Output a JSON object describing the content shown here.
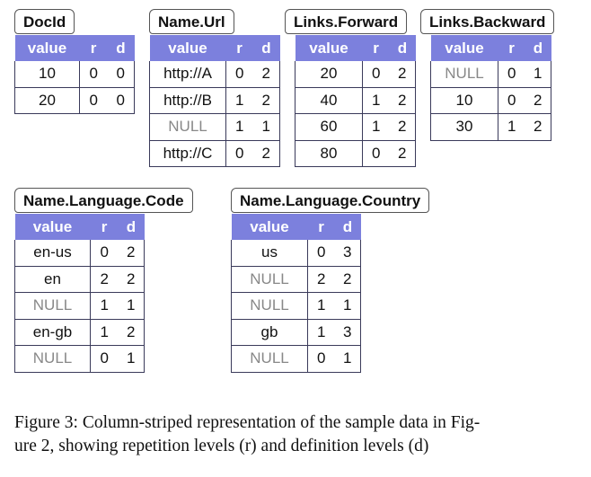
{
  "header_color": "#7c80dd",
  "columns": [
    {
      "title": "DocId",
      "headers": [
        "value",
        "r",
        "d"
      ],
      "rows": [
        [
          "10",
          "0",
          "0"
        ],
        [
          "20",
          "0",
          "0"
        ]
      ]
    },
    {
      "title": "Name.Url",
      "headers": [
        "value",
        "r",
        "d"
      ],
      "rows": [
        [
          "http://A",
          "0",
          "2"
        ],
        [
          "http://B",
          "1",
          "2"
        ],
        [
          "NULL",
          "1",
          "1"
        ],
        [
          "http://C",
          "0",
          "2"
        ]
      ]
    },
    {
      "title": "Links.Forward",
      "headers": [
        "value",
        "r",
        "d"
      ],
      "rows": [
        [
          "20",
          "0",
          "2"
        ],
        [
          "40",
          "1",
          "2"
        ],
        [
          "60",
          "1",
          "2"
        ],
        [
          "80",
          "0",
          "2"
        ]
      ]
    },
    {
      "title": "Links.Backward",
      "headers": [
        "value",
        "r",
        "d"
      ],
      "rows": [
        [
          "NULL",
          "0",
          "1"
        ],
        [
          "10",
          "0",
          "2"
        ],
        [
          "30",
          "1",
          "2"
        ]
      ]
    },
    {
      "title": "Name.Language.Code",
      "headers": [
        "value",
        "r",
        "d"
      ],
      "rows": [
        [
          "en-us",
          "0",
          "2"
        ],
        [
          "en",
          "2",
          "2"
        ],
        [
          "NULL",
          "1",
          "1"
        ],
        [
          "en-gb",
          "1",
          "2"
        ],
        [
          "NULL",
          "0",
          "1"
        ]
      ]
    },
    {
      "title": "Name.Language.Country",
      "headers": [
        "value",
        "r",
        "d"
      ],
      "rows": [
        [
          "us",
          "0",
          "3"
        ],
        [
          "NULL",
          "2",
          "2"
        ],
        [
          "NULL",
          "1",
          "1"
        ],
        [
          "gb",
          "1",
          "3"
        ],
        [
          "NULL",
          "0",
          "1"
        ]
      ]
    }
  ],
  "caption": {
    "line1": "Figure 3: Column-striped representation of the sample data in Fig-",
    "line2": "ure 2, showing repetition levels (r) and definition levels (d)"
  }
}
